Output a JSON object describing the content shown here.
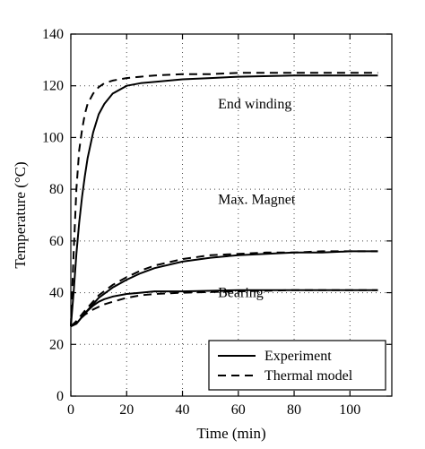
{
  "chart_data": {
    "type": "line",
    "title": "",
    "xlabel": "Time (min)",
    "ylabel": "Temperature (°C)",
    "xlim": [
      0,
      115
    ],
    "ylim": [
      0,
      140
    ],
    "xticks": [
      0,
      20,
      40,
      60,
      80,
      100
    ],
    "yticks": [
      0,
      20,
      40,
      60,
      80,
      100,
      120,
      140
    ],
    "grid": true,
    "legend_position": "bottom-right",
    "legend": [
      "Experiment",
      "Thermal model"
    ],
    "annotations": [
      {
        "text": "End winding",
        "x": 72,
        "y": 113
      },
      {
        "text": "Max. Magnet",
        "x": 72,
        "y": 76
      },
      {
        "text": "Bearing",
        "x": 72,
        "y": 40
      }
    ],
    "series": [
      {
        "group": "End winding",
        "style": "Experiment",
        "x": [
          0,
          1,
          2,
          3,
          4,
          5,
          6,
          8,
          10,
          12,
          15,
          20,
          25,
          30,
          40,
          50,
          60,
          80,
          100,
          110
        ],
        "y": [
          27,
          40,
          55,
          67,
          77,
          85,
          92,
          102,
          109,
          113,
          117,
          120,
          121,
          121.5,
          122.5,
          123,
          123.5,
          124,
          124,
          124
        ]
      },
      {
        "group": "End winding",
        "style": "Thermal model",
        "x": [
          0,
          1,
          2,
          3,
          4,
          5,
          6,
          8,
          10,
          12,
          15,
          20,
          25,
          30,
          40,
          50,
          60,
          80,
          100,
          110
        ],
        "y": [
          27,
          55,
          80,
          95,
          103,
          109,
          113,
          117,
          119.5,
          121,
          122,
          123,
          123.5,
          124,
          124.5,
          124.5,
          125,
          125,
          125,
          125
        ]
      },
      {
        "group": "Max. Magnet",
        "style": "Experiment",
        "x": [
          0,
          2,
          5,
          10,
          15,
          20,
          25,
          30,
          40,
          50,
          60,
          70,
          80,
          90,
          100,
          110
        ],
        "y": [
          27,
          28,
          32,
          38,
          42,
          45,
          47.5,
          49.5,
          52,
          53.5,
          54.5,
          55,
          55.5,
          55.5,
          56,
          56
        ]
      },
      {
        "group": "Max. Magnet",
        "style": "Thermal model",
        "x": [
          0,
          2,
          5,
          10,
          15,
          20,
          25,
          30,
          40,
          50,
          60,
          70,
          80,
          90,
          100,
          110
        ],
        "y": [
          27,
          29,
          33,
          39,
          43,
          46,
          48.5,
          50.5,
          53,
          54.5,
          55,
          55.5,
          55.5,
          56,
          56,
          56
        ]
      },
      {
        "group": "Bearing",
        "style": "Experiment",
        "x": [
          0,
          2,
          5,
          8,
          10,
          12,
          15,
          20,
          25,
          30,
          40,
          60,
          80,
          100,
          110
        ],
        "y": [
          27,
          28,
          32,
          35,
          36.5,
          37.5,
          38.5,
          39.5,
          40,
          40.5,
          40.5,
          41,
          41,
          41,
          41
        ]
      },
      {
        "group": "Bearing",
        "style": "Thermal model",
        "x": [
          0,
          2,
          5,
          8,
          10,
          12,
          15,
          20,
          25,
          30,
          40,
          60,
          80,
          100,
          110
        ],
        "y": [
          27,
          28.5,
          31.5,
          33.5,
          34.5,
          35.5,
          36.5,
          38,
          39,
          39.5,
          40,
          40.5,
          41,
          41,
          41
        ]
      }
    ]
  }
}
